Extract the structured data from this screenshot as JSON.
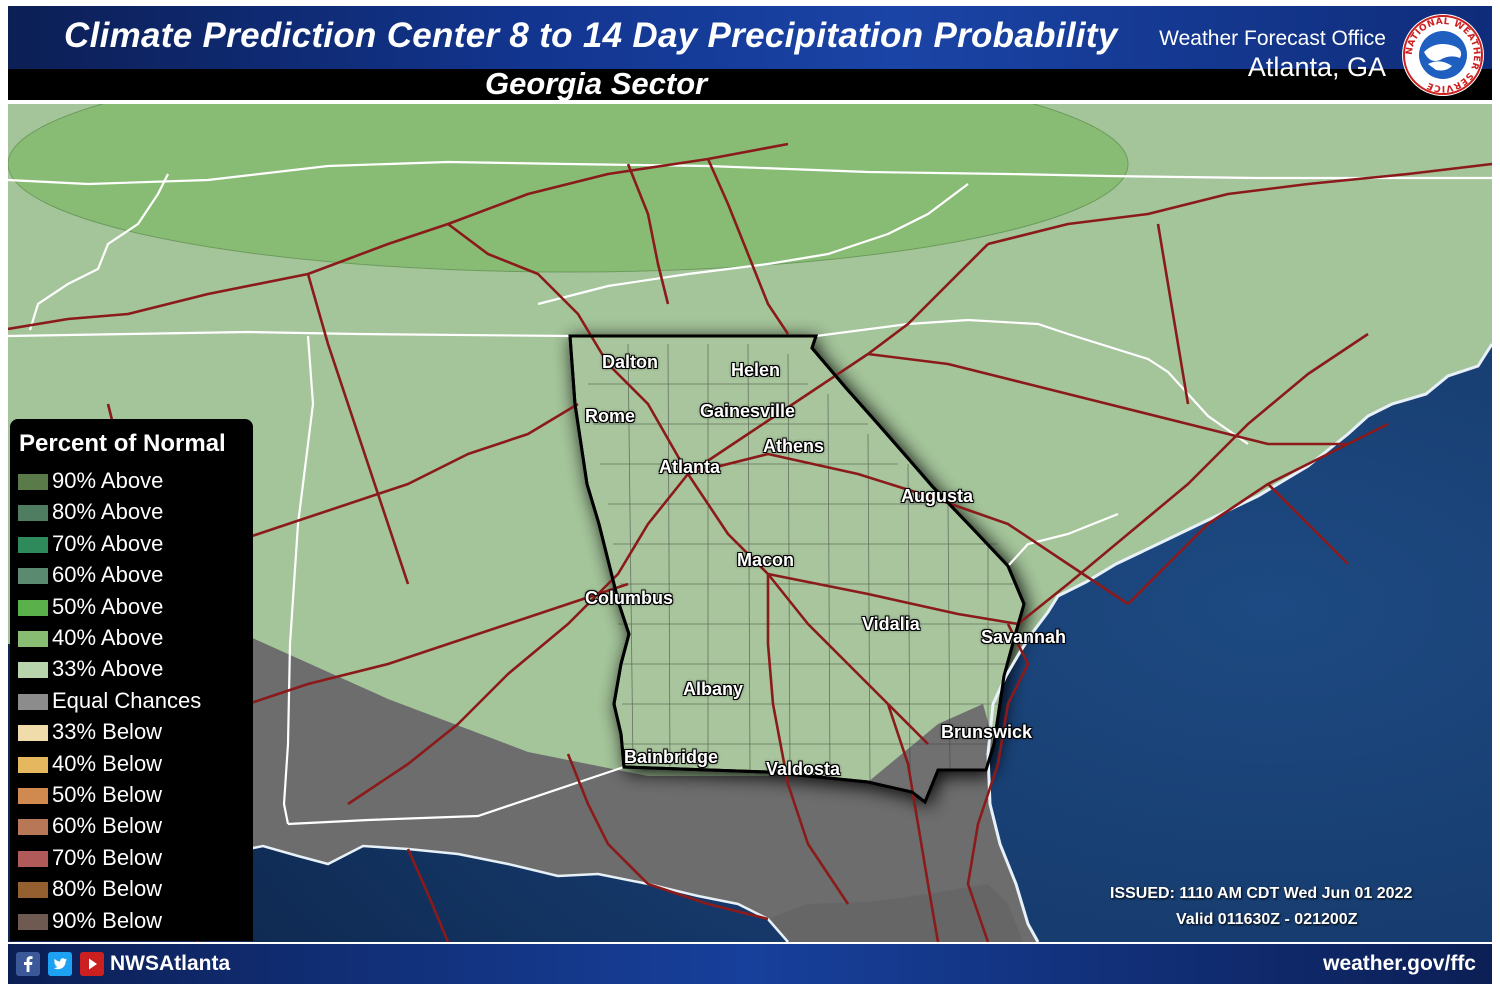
{
  "header": {
    "title": "Climate Prediction Center 8 to 14 Day Precipitation Probability",
    "subtitle": "Georgia Sector",
    "office": "Weather Forecast Office",
    "city": "Atlanta, GA",
    "logo_text": "NATIONAL WEATHER SERVICE"
  },
  "map": {
    "colors": {
      "ocean": "#1f3f70",
      "land_33_above": "#a4c49a",
      "land_40_above": "#87bc72",
      "equal_chances": "#6d6d6d",
      "roads": "#8b1a1a",
      "boundaries": "#ffffff",
      "georgia_fill": "#a8c59d"
    },
    "cities": [
      {
        "name": "Dalton"
      },
      {
        "name": "Helen"
      },
      {
        "name": "Rome"
      },
      {
        "name": "Gainesville"
      },
      {
        "name": "Athens"
      },
      {
        "name": "Atlanta"
      },
      {
        "name": "Augusta"
      },
      {
        "name": "Macon"
      },
      {
        "name": "Columbus"
      },
      {
        "name": "Vidalia"
      },
      {
        "name": "Savannah"
      },
      {
        "name": "Albany"
      },
      {
        "name": "Brunswick"
      },
      {
        "name": "Bainbridge"
      },
      {
        "name": "Valdosta"
      }
    ],
    "issued": "ISSUED: 1110 AM CDT Wed Jun 01 2022",
    "valid": "Valid 011630Z - 021200Z"
  },
  "legend": {
    "title": "Percent of Normal",
    "items": [
      {
        "label": "90% Above",
        "color": "#5a7a4a"
      },
      {
        "label": "80% Above",
        "color": "#4e7d62"
      },
      {
        "label": "70% Above",
        "color": "#2e8a5a"
      },
      {
        "label": "60% Above",
        "color": "#5a8a70"
      },
      {
        "label": "50% Above",
        "color": "#5ab04a"
      },
      {
        "label": "40% Above",
        "color": "#87bc72"
      },
      {
        "label": "33% Above",
        "color": "#b8d4ac"
      },
      {
        "label": "Equal Chances",
        "color": "#8c8c8c"
      },
      {
        "label": "33% Below",
        "color": "#f0dcaa"
      },
      {
        "label": "40% Below",
        "color": "#e5b860"
      },
      {
        "label": "50% Below",
        "color": "#d08a50"
      },
      {
        "label": "60% Below",
        "color": "#b87858"
      },
      {
        "label": "70% Below",
        "color": "#b05a5a"
      },
      {
        "label": "80% Below",
        "color": "#946030"
      },
      {
        "label": "90% Below",
        "color": "#6e5a50"
      }
    ]
  },
  "footer": {
    "social_icons": [
      "facebook-icon",
      "twitter-icon",
      "youtube-icon"
    ],
    "handle": "NWSAtlanta",
    "website": "weather.gov/ffc"
  }
}
